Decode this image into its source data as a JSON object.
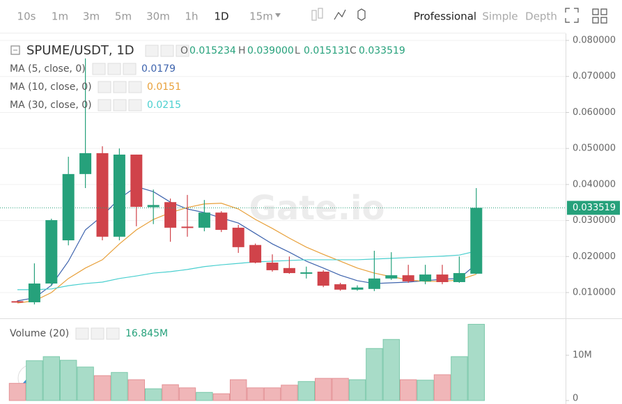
{
  "toolbar": {
    "intervals": [
      "10s",
      "1m",
      "3m",
      "5m",
      "30m",
      "1h",
      "1D",
      "15m"
    ],
    "active_interval": 6,
    "modes": [
      "Professional",
      "Simple",
      "Depth"
    ],
    "active_mode": 0
  },
  "chart_data": {
    "type": "candlestick",
    "title": "SPUME/USDT, 1D",
    "watermark": "Gate.io",
    "ohlc_legend": [
      {
        "label": "O",
        "value": "0.015234"
      },
      {
        "label": "H",
        "value": "0.039000"
      },
      {
        "label": "L",
        "value": "0.015131"
      },
      {
        "label": "C",
        "value": "0.033519"
      }
    ],
    "up_color": "#26a17b",
    "down_color": "#d0434a",
    "candles": {
      "open": [
        0.0076,
        0.0073,
        0.0125,
        0.0245,
        0.0429,
        0.0487,
        0.0255,
        0.0483,
        0.0337,
        0.0351,
        0.0283,
        0.028,
        0.0322,
        0.028,
        0.0232,
        0.0183,
        0.0168,
        0.0153,
        0.0158,
        0.0123,
        0.0108,
        0.011,
        0.0139,
        0.0148,
        0.0131,
        0.015,
        0.0129,
        0.015234
      ],
      "high": [
        0.0078,
        0.0181,
        0.0305,
        0.0477,
        0.075,
        0.0506,
        0.05,
        0.0483,
        0.0386,
        0.0361,
        0.0371,
        0.0357,
        0.0326,
        0.0288,
        0.0236,
        0.0206,
        0.02,
        0.0172,
        0.0162,
        0.0127,
        0.012,
        0.0216,
        0.0212,
        0.0177,
        0.0177,
        0.0177,
        0.02,
        0.039
      ],
      "low": [
        0.0072,
        0.0067,
        0.0118,
        0.0231,
        0.039,
        0.0245,
        0.0245,
        0.0284,
        0.029,
        0.0241,
        0.0255,
        0.027,
        0.0268,
        0.021,
        0.0181,
        0.0158,
        0.0152,
        0.0139,
        0.0115,
        0.0105,
        0.0105,
        0.0104,
        0.0135,
        0.0127,
        0.0123,
        0.0123,
        0.0127,
        0.015131
      ],
      "close": [
        0.0073,
        0.0125,
        0.0301,
        0.0429,
        0.0487,
        0.0255,
        0.0483,
        0.0338,
        0.0343,
        0.028,
        0.028,
        0.0322,
        0.0274,
        0.0226,
        0.0183,
        0.0162,
        0.0154,
        0.0156,
        0.0119,
        0.0108,
        0.0114,
        0.0139,
        0.0148,
        0.0131,
        0.015,
        0.0129,
        0.0154,
        0.033519
      ]
    },
    "series": [
      {
        "name": "MA (5, close, 0)",
        "color": "#3d63ad",
        "values": [
          0.0077,
          0.0085,
          0.012,
          0.0187,
          0.0274,
          0.0313,
          0.0361,
          0.0394,
          0.038,
          0.0351,
          0.0332,
          0.0322,
          0.0307,
          0.0293,
          0.0264,
          0.0235,
          0.0212,
          0.0187,
          0.0168,
          0.0148,
          0.0133,
          0.0125,
          0.0127,
          0.0129,
          0.0133,
          0.0137,
          0.0139,
          0.0179
        ]
      },
      {
        "name": "MA (10, close, 0)",
        "color": "#e8a03a",
        "values": [
          0.0071,
          0.0077,
          0.01,
          0.0139,
          0.0168,
          0.0191,
          0.0235,
          0.0274,
          0.0303,
          0.0322,
          0.0336,
          0.0346,
          0.0348,
          0.0332,
          0.0303,
          0.0278,
          0.0251,
          0.0226,
          0.0206,
          0.0187,
          0.0168,
          0.0154,
          0.0144,
          0.0135,
          0.0131,
          0.0131,
          0.0135,
          0.0151
        ]
      },
      {
        "name": "MA (30, close, 0)",
        "color": "#49cfcf",
        "values": [
          0.0108,
          0.0108,
          0.011,
          0.0119,
          0.0125,
          0.0129,
          0.0139,
          0.0146,
          0.0154,
          0.0158,
          0.0164,
          0.0172,
          0.0177,
          0.0181,
          0.0185,
          0.0187,
          0.0189,
          0.0191,
          0.0191,
          0.0191,
          0.0191,
          0.0193,
          0.0195,
          0.0197,
          0.0199,
          0.0201,
          0.0204,
          0.0215
        ]
      }
    ],
    "ylim": [
      0.00284,
      0.08194
    ],
    "yticks": [
      {
        "value": 0.01,
        "label": "0.010000"
      },
      {
        "value": 0.02,
        "label": "0.020000"
      },
      {
        "value": 0.03,
        "label": "0.030000"
      },
      {
        "value": 0.04,
        "label": "0.040000"
      },
      {
        "value": 0.05,
        "label": "0.050000"
      },
      {
        "value": 0.06,
        "label": "0.060000"
      },
      {
        "value": 0.07,
        "label": "0.070000"
      },
      {
        "value": 0.08,
        "label": "0.080000"
      }
    ],
    "grid": true,
    "last_price": {
      "value": 0.033519,
      "label": "0.033519"
    },
    "volume": {
      "name": "Volume (20)",
      "legend_value": "16.845M",
      "up_color": "#a8dcc8",
      "down_color": "#f0b6b8",
      "values": [
        3800000,
        8800000,
        9700000,
        8900000,
        7400000,
        5500000,
        6200000,
        4600000,
        2600000,
        3500000,
        2800000,
        1800000,
        1500000,
        4600000,
        2800000,
        2800000,
        3400000,
        4200000,
        4900000,
        4900000,
        4600000,
        11500000,
        13500000,
        4600000,
        4500000,
        5700000,
        9700000,
        16845000
      ],
      "ylim": [
        0,
        17700000
      ],
      "yticks": [
        0,
        {
          "value": 10000000,
          "label": "10M"
        }
      ]
    }
  }
}
